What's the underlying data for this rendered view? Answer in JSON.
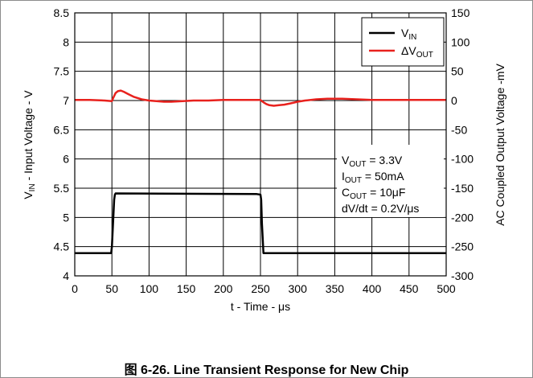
{
  "caption": "图 6-26. Line Transient Response for New Chip",
  "chart_data": {
    "type": "line",
    "xlabel": "t - Time - μs",
    "ylabel": "V_IN - Input Voltage - V",
    "y2label": "AC Coupled Output Voltage -mV",
    "xlim": [
      0,
      500
    ],
    "ylim": [
      4,
      8.5
    ],
    "y2lim": [
      -300,
      150
    ],
    "x_ticks": [
      0,
      50,
      100,
      150,
      200,
      250,
      300,
      350,
      400,
      450,
      500
    ],
    "y_ticks": [
      "4",
      "4.5",
      "5",
      "5.5",
      "6",
      "6.5",
      "7",
      "7.5",
      "8",
      "8.5"
    ],
    "y2_ticks": [
      "-300",
      "-250",
      "-200",
      "-150",
      "-100",
      "-50",
      "0",
      "50",
      "100",
      "150"
    ],
    "grid": true,
    "legend_position": "top-right",
    "series": [
      {
        "name": "V_IN",
        "axis": "left",
        "color": "#000000",
        "x": [
          0,
          49,
          50,
          53,
          54,
          55,
          245,
          250,
          251,
          252,
          254,
          500
        ],
        "y": [
          4.39,
          4.39,
          4.5,
          5.3,
          5.39,
          5.41,
          5.4,
          5.39,
          5.3,
          4.9,
          4.39,
          4.39
        ]
      },
      {
        "name": "ΔV_OUT",
        "axis": "right",
        "color": "#e8211d",
        "x": [
          0,
          20,
          40,
          50,
          52,
          55,
          58,
          62,
          66,
          72,
          80,
          90,
          100,
          110,
          120,
          130,
          145,
          160,
          180,
          200,
          220,
          240,
          250,
          254,
          258,
          262,
          268,
          275,
          282,
          290,
          300,
          310,
          325,
          340,
          360,
          380,
          400,
          430,
          460,
          500
        ],
        "y": [
          1,
          1,
          0,
          -1,
          5,
          13,
          16,
          17,
          15,
          11,
          6,
          2,
          0,
          -1,
          -2,
          -2,
          -1,
          0,
          0,
          1,
          1,
          1,
          1,
          -3,
          -6,
          -8,
          -9,
          -8,
          -7,
          -5,
          -2,
          0,
          2,
          3,
          3,
          2,
          1,
          1,
          1,
          1
        ]
      }
    ],
    "annotations": [
      "V_OUT = 3.3V",
      "I_OUT = 50mA",
      "C_OUT = 10μF",
      "dV/dt = 0.2V/μs"
    ]
  }
}
